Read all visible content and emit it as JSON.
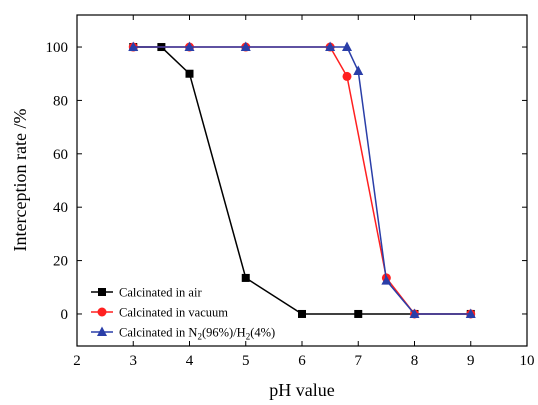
{
  "chart_data": {
    "type": "line",
    "xlabel": "pH value",
    "ylabel": "Interception rate /%",
    "xlim": [
      2,
      10
    ],
    "ylim": [
      -12,
      112
    ],
    "xticks": [
      2,
      3,
      4,
      5,
      6,
      7,
      8,
      9,
      10
    ],
    "yticks": [
      0,
      20,
      40,
      60,
      80,
      100
    ],
    "grid": false,
    "legend_position": "bottom-left",
    "series": [
      {
        "name": "Calcinated in air",
        "color": "#000000",
        "marker": "square",
        "x": [
          3,
          3.5,
          4,
          5,
          6,
          7,
          8,
          9
        ],
        "y": [
          100,
          100,
          90,
          13.5,
          0,
          0,
          0,
          0
        ]
      },
      {
        "name": "Calcinated in vacuum",
        "color": "#ff2020",
        "marker": "circle",
        "x": [
          3,
          4,
          5,
          6.5,
          6.8,
          7.5,
          8,
          9
        ],
        "y": [
          100,
          100,
          100,
          100,
          89,
          13.5,
          0,
          0
        ]
      },
      {
        "name": "Calcinated in N2(96%)/H2(4%)",
        "legend_parts": [
          "Calcinated in N",
          "2",
          "(96%)/H",
          "2",
          "(4%)"
        ],
        "color": "#2a3ea8",
        "marker": "triangle",
        "x": [
          3,
          4,
          5,
          6.5,
          6.8,
          7,
          7.5,
          8,
          9
        ],
        "y": [
          100,
          100,
          100,
          100,
          100,
          91,
          12.5,
          0,
          0
        ]
      }
    ]
  }
}
